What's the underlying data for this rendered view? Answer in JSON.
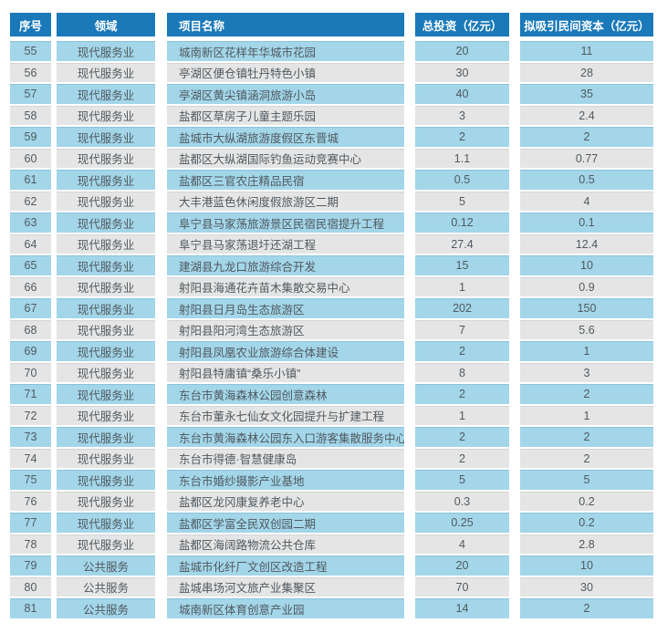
{
  "table": {
    "headers": [
      "序号",
      "领域",
      "项目名称",
      "总投资（亿元）",
      "拟吸引民间资本（亿元）"
    ],
    "rows": [
      [
        "55",
        "现代服务业",
        "城南新区花样年华城市花园",
        "20",
        "11"
      ],
      [
        "56",
        "现代服务业",
        "亭湖区便仓镇牡丹特色小镇",
        "30",
        "28"
      ],
      [
        "57",
        "现代服务业",
        "亭湖区黄尖镇涵洞旅游小岛",
        "40",
        "35"
      ],
      [
        "58",
        "现代服务业",
        "盐都区草房子儿童主题乐园",
        "3",
        "2.4"
      ],
      [
        "59",
        "现代服务业",
        "盐城市大纵湖旅游度假区东晋城",
        "2",
        "2"
      ],
      [
        "60",
        "现代服务业",
        "盐都区大纵湖国际钓鱼运动竞赛中心",
        "1.1",
        "0.77"
      ],
      [
        "61",
        "现代服务业",
        "盐都区三官农庄精品民宿",
        "0.5",
        "0.5"
      ],
      [
        "62",
        "现代服务业",
        "大丰港蓝色休闲度假旅游区二期",
        "5",
        "4"
      ],
      [
        "63",
        "现代服务业",
        "阜宁县马家荡旅游景区民宿民宿提升工程",
        "0.12",
        "0.1"
      ],
      [
        "64",
        "现代服务业",
        "阜宁县马家荡退圩还湖工程",
        "27.4",
        "12.4"
      ],
      [
        "65",
        "现代服务业",
        "建湖县九龙口旅游综合开发",
        "15",
        "10"
      ],
      [
        "66",
        "现代服务业",
        "射阳县海通花卉苗木集散交易中心",
        "1",
        "0.9"
      ],
      [
        "67",
        "现代服务业",
        "射阳县日月岛生态旅游区",
        "202",
        "150"
      ],
      [
        "68",
        "现代服务业",
        "射阳县阳河湾生态旅游区",
        "7",
        "5.6"
      ],
      [
        "69",
        "现代服务业",
        "射阳县凤凰农业旅游综合体建设",
        "2",
        "1"
      ],
      [
        "70",
        "现代服务业",
        "射阳县特庸镇“桑乐小镇”",
        "8",
        "3"
      ],
      [
        "71",
        "现代服务业",
        "东台市黄海森林公园创意森林",
        "2",
        "2"
      ],
      [
        "72",
        "现代服务业",
        "东台市董永七仙女文化园提升与扩建工程",
        "1",
        "1"
      ],
      [
        "73",
        "现代服务业",
        "东台市黄海森林公园东入口游客集散服务中心",
        "2",
        "2"
      ],
      [
        "74",
        "现代服务业",
        "东台市得德·智慧健康岛",
        "2",
        "2"
      ],
      [
        "75",
        "现代服务业",
        "东台市婚纱摄影产业基地",
        "5",
        "5"
      ],
      [
        "76",
        "现代服务业",
        "盐都区龙冈康复养老中心",
        "0.3",
        "0.2"
      ],
      [
        "77",
        "现代服务业",
        "盐都区学富全民双创园二期",
        "0.25",
        "0.2"
      ],
      [
        "78",
        "现代服务业",
        "盐都区海阔路物流公共仓库",
        "4",
        "2.8"
      ],
      [
        "79",
        "公共服务",
        "盐城市化纤厂文创区改造工程",
        "20",
        "10"
      ],
      [
        "80",
        "公共服务",
        "盐城串场河文旅产业集聚区",
        "70",
        "30"
      ],
      [
        "81",
        "公共服务",
        "城南新区体育创意产业园",
        "14",
        "2"
      ]
    ],
    "column_names": [
      "index",
      "category",
      "project-name",
      "total-investment",
      "private-capital"
    ]
  },
  "colors": {
    "header_bg": "#1979b9",
    "row_blue": "#a3d6e9",
    "row_gray": "#e5e5e5",
    "header_text": "#ffffff",
    "cell_text": "#50595f"
  }
}
